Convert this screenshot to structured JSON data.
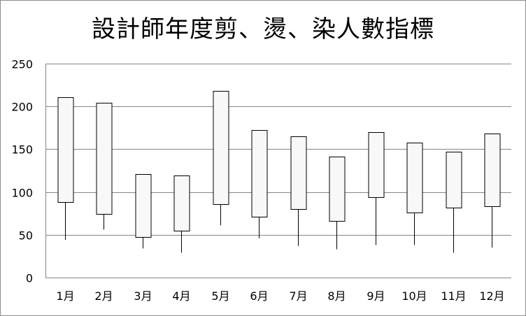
{
  "chart_data": {
    "type": "candlestick",
    "title": "設計師年度剪、燙、染人數指標",
    "xlabel": "",
    "ylabel": "",
    "ylim": [
      0,
      250
    ],
    "y_ticks": [
      0,
      50,
      100,
      150,
      200,
      250
    ],
    "grid": true,
    "categories": [
      "1月",
      "2月",
      "3月",
      "4月",
      "5月",
      "6月",
      "7月",
      "8月",
      "9月",
      "10月",
      "11月",
      "12月"
    ],
    "series": [
      {
        "open": [
          88,
          74,
          47,
          55,
          86,
          71,
          80,
          66,
          94,
          76,
          82,
          83
        ],
        "close": [
          211,
          204,
          121,
          119,
          218,
          172,
          165,
          141,
          170,
          158,
          147,
          168
        ],
        "high": [
          211,
          204,
          121,
          119,
          218,
          172,
          165,
          141,
          170,
          158,
          147,
          168
        ],
        "low": [
          44,
          56,
          34,
          29,
          61,
          46,
          37,
          33,
          38,
          38,
          29,
          35
        ]
      }
    ]
  },
  "colors": {
    "box_fill": "#f8f8f8",
    "stroke": "#000000",
    "grid": "#868686",
    "frame": "#8c8c8c"
  }
}
